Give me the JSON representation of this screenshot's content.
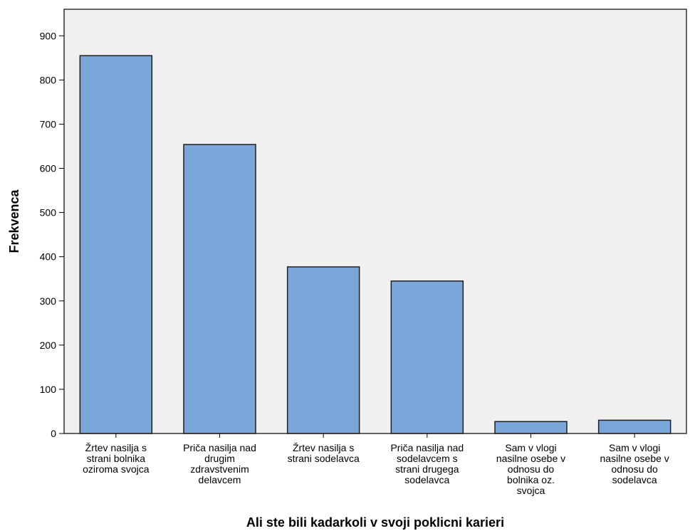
{
  "chart_data": {
    "type": "bar",
    "title": "",
    "xlabel": "Ali ste bili kadarkoli v svoji poklicni karieri",
    "ylabel": "Frekvenca",
    "ylim": [
      0,
      960
    ],
    "yticks": [
      0,
      100,
      200,
      300,
      400,
      500,
      600,
      700,
      800,
      900
    ],
    "grid": false,
    "categories": [
      [
        "Žrtev nasilja s",
        "strani bolnika",
        "oziroma svojca"
      ],
      [
        "Priča nasilja nad",
        "drugim",
        "zdravstvenim",
        "delavcem"
      ],
      [
        "Žrtev nasilja s",
        "strani sodelavca"
      ],
      [
        "Priča nasilja nad",
        "sodelavcem s",
        "strani drugega",
        "sodelavca"
      ],
      [
        "Sam v vlogi",
        "nasilne osebe v",
        "odnosu do",
        "bolnika oz.",
        "svojca"
      ],
      [
        "Sam v vlogi",
        "nasilne osebe v",
        "odnosu do",
        "sodelavca"
      ]
    ],
    "values": [
      855,
      654,
      377,
      345,
      27,
      30
    ],
    "colors": {
      "bar_fill": "#7aa6d9",
      "bar_stroke": "#1f1f1f",
      "plot_bg": "#f0f0f0",
      "axis": "#000000"
    }
  }
}
